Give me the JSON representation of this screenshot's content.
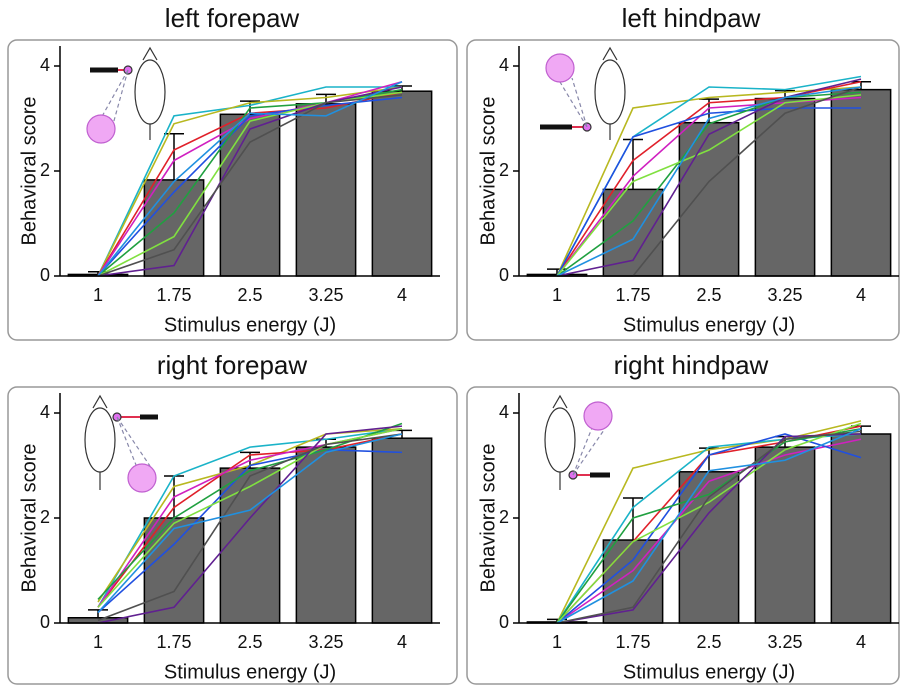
{
  "chart_data": [
    {
      "type": "bar",
      "title": "left forepaw",
      "x_label": "Stimulus energy (J)",
      "y_label": "Behavioral score",
      "categories": [
        "1",
        "1.75",
        "2.5",
        "3.25",
        "4"
      ],
      "values": [
        0.03,
        1.83,
        3.08,
        3.28,
        3.52
      ],
      "errors": [
        0.05,
        0.88,
        0.25,
        0.18,
        0.1
      ],
      "color": "#666666",
      "ylim": [
        0,
        4
      ],
      "yticks": [
        0,
        2,
        4
      ],
      "series": [
        {
          "color": "#1ab3c8",
          "values": [
            0,
            3.05,
            3.25,
            3.6,
            3.6
          ]
        },
        {
          "color": "#b8b820",
          "values": [
            0,
            2.9,
            3.3,
            3.4,
            3.6
          ]
        },
        {
          "color": "#e0202a",
          "values": [
            0,
            2.4,
            3.1,
            3.2,
            3.5
          ]
        },
        {
          "color": "#d020c0",
          "values": [
            0,
            2.2,
            3.0,
            3.3,
            3.7
          ]
        },
        {
          "color": "#2050e0",
          "values": [
            0,
            1.6,
            3.05,
            3.25,
            3.4
          ]
        },
        {
          "color": "#20a040",
          "values": [
            0,
            1.2,
            3.2,
            3.3,
            3.55
          ]
        },
        {
          "color": "#80e040",
          "values": [
            0,
            0.75,
            2.95,
            3.3,
            3.5
          ]
        },
        {
          "color": "#602090",
          "values": [
            0,
            0.2,
            2.8,
            3.3,
            3.6
          ]
        },
        {
          "color": "#505050",
          "values": [
            0,
            0.5,
            2.55,
            3.3,
            3.45
          ]
        },
        {
          "color": "#2090e0",
          "values": [
            0,
            1.8,
            3.1,
            3.05,
            3.7
          ]
        }
      ]
    },
    {
      "type": "bar",
      "title": "left hindpaw",
      "x_label": "Stimulus energy (J)",
      "y_label": "Behavioral score",
      "categories": [
        "1",
        "1.75",
        "2.5",
        "3.25",
        "4"
      ],
      "values": [
        0.03,
        1.65,
        2.92,
        3.38,
        3.55
      ],
      "errors": [
        0.1,
        0.95,
        0.45,
        0.15,
        0.15
      ],
      "color": "#666666",
      "ylim": [
        0,
        4
      ],
      "yticks": [
        0,
        2,
        4
      ],
      "series": [
        {
          "color": "#b8b820",
          "values": [
            0,
            3.2,
            3.4,
            3.5,
            3.6
          ]
        },
        {
          "color": "#1ab3c8",
          "values": [
            0,
            2.65,
            3.6,
            3.55,
            3.8
          ]
        },
        {
          "color": "#e0202a",
          "values": [
            0,
            2.2,
            3.3,
            3.4,
            3.7
          ]
        },
        {
          "color": "#d020c0",
          "values": [
            0,
            1.9,
            3.2,
            3.3,
            3.4
          ]
        },
        {
          "color": "#2050e0",
          "values": [
            0,
            2.65,
            3.1,
            3.2,
            3.2
          ]
        },
        {
          "color": "#20a040",
          "values": [
            0,
            1.05,
            2.9,
            3.4,
            3.5
          ]
        },
        {
          "color": "#80e040",
          "values": [
            0,
            1.8,
            2.4,
            3.3,
            3.45
          ]
        },
        {
          "color": "#602090",
          "values": [
            0,
            0.3,
            2.7,
            3.4,
            3.75
          ]
        },
        {
          "color": "#505050",
          "values": [
            0,
            0,
            1.8,
            3.1,
            3.6
          ]
        },
        {
          "color": "#2090e0",
          "values": [
            0,
            0.7,
            3.0,
            3.4,
            3.6
          ]
        }
      ]
    },
    {
      "type": "bar",
      "title": "right forepaw",
      "x_label": "Stimulus energy (J)",
      "y_label": "Behavioral score",
      "categories": [
        "1",
        "1.75",
        "2.5",
        "3.25",
        "4"
      ],
      "values": [
        0.1,
        2.0,
        2.95,
        3.35,
        3.52
      ],
      "errors": [
        0.15,
        0.8,
        0.3,
        0.15,
        0.15
      ],
      "color": "#666666",
      "ylim": [
        0,
        4
      ],
      "yticks": [
        0,
        2,
        4
      ],
      "series": [
        {
          "color": "#1ab3c8",
          "values": [
            0.3,
            2.8,
            3.35,
            3.5,
            3.7
          ]
        },
        {
          "color": "#b8b820",
          "values": [
            0.4,
            2.6,
            3.0,
            3.6,
            3.7
          ]
        },
        {
          "color": "#e0202a",
          "values": [
            0.3,
            2.2,
            3.2,
            3.3,
            3.6
          ]
        },
        {
          "color": "#d020c0",
          "values": [
            0.3,
            2.4,
            3.1,
            3.4,
            3.7
          ]
        },
        {
          "color": "#2050e0",
          "values": [
            0.2,
            1.5,
            3.0,
            3.3,
            3.25
          ]
        },
        {
          "color": "#20a040",
          "values": [
            0.45,
            2.0,
            2.9,
            3.3,
            3.8
          ]
        },
        {
          "color": "#80e040",
          "values": [
            0.3,
            1.9,
            2.6,
            3.4,
            3.7
          ]
        },
        {
          "color": "#602090",
          "values": [
            0,
            0.3,
            2.0,
            3.6,
            3.75
          ]
        },
        {
          "color": "#505050",
          "values": [
            0.05,
            0.6,
            2.8,
            3.4,
            3.6
          ]
        },
        {
          "color": "#2090e0",
          "values": [
            0.2,
            1.8,
            2.15,
            3.25,
            3.6
          ]
        }
      ]
    },
    {
      "type": "bar",
      "title": "right hindpaw",
      "x_label": "Stimulus energy (J)",
      "y_label": "Behavioral score",
      "categories": [
        "1",
        "1.75",
        "2.5",
        "3.25",
        "4"
      ],
      "values": [
        0.02,
        1.58,
        2.88,
        3.35,
        3.6
      ],
      "errors": [
        0.05,
        0.8,
        0.45,
        0.2,
        0.15
      ],
      "color": "#666666",
      "ylim": [
        0,
        4
      ],
      "yticks": [
        0,
        2,
        4
      ],
      "series": [
        {
          "color": "#b8b820",
          "values": [
            0,
            2.95,
            3.3,
            3.5,
            3.85
          ]
        },
        {
          "color": "#1ab3c8",
          "values": [
            0,
            2.2,
            3.35,
            3.5,
            3.6
          ]
        },
        {
          "color": "#e0202a",
          "values": [
            0,
            1.55,
            3.2,
            3.45,
            3.75
          ]
        },
        {
          "color": "#d020c0",
          "values": [
            0,
            1.0,
            2.7,
            3.2,
            3.5
          ]
        },
        {
          "color": "#2050e0",
          "values": [
            0,
            1.2,
            3.2,
            3.6,
            3.15
          ]
        },
        {
          "color": "#20a040",
          "values": [
            0,
            2.0,
            2.45,
            3.45,
            3.7
          ]
        },
        {
          "color": "#80e040",
          "values": [
            0,
            1.55,
            2.3,
            3.3,
            3.8
          ]
        },
        {
          "color": "#602090",
          "values": [
            0,
            0.25,
            2.1,
            3.55,
            3.6
          ]
        },
        {
          "color": "#505050",
          "values": [
            0,
            0.3,
            2.4,
            3.5,
            3.65
          ]
        },
        {
          "color": "#2090e0",
          "values": [
            0,
            0.8,
            2.9,
            3.1,
            3.7
          ]
        }
      ]
    }
  ]
}
